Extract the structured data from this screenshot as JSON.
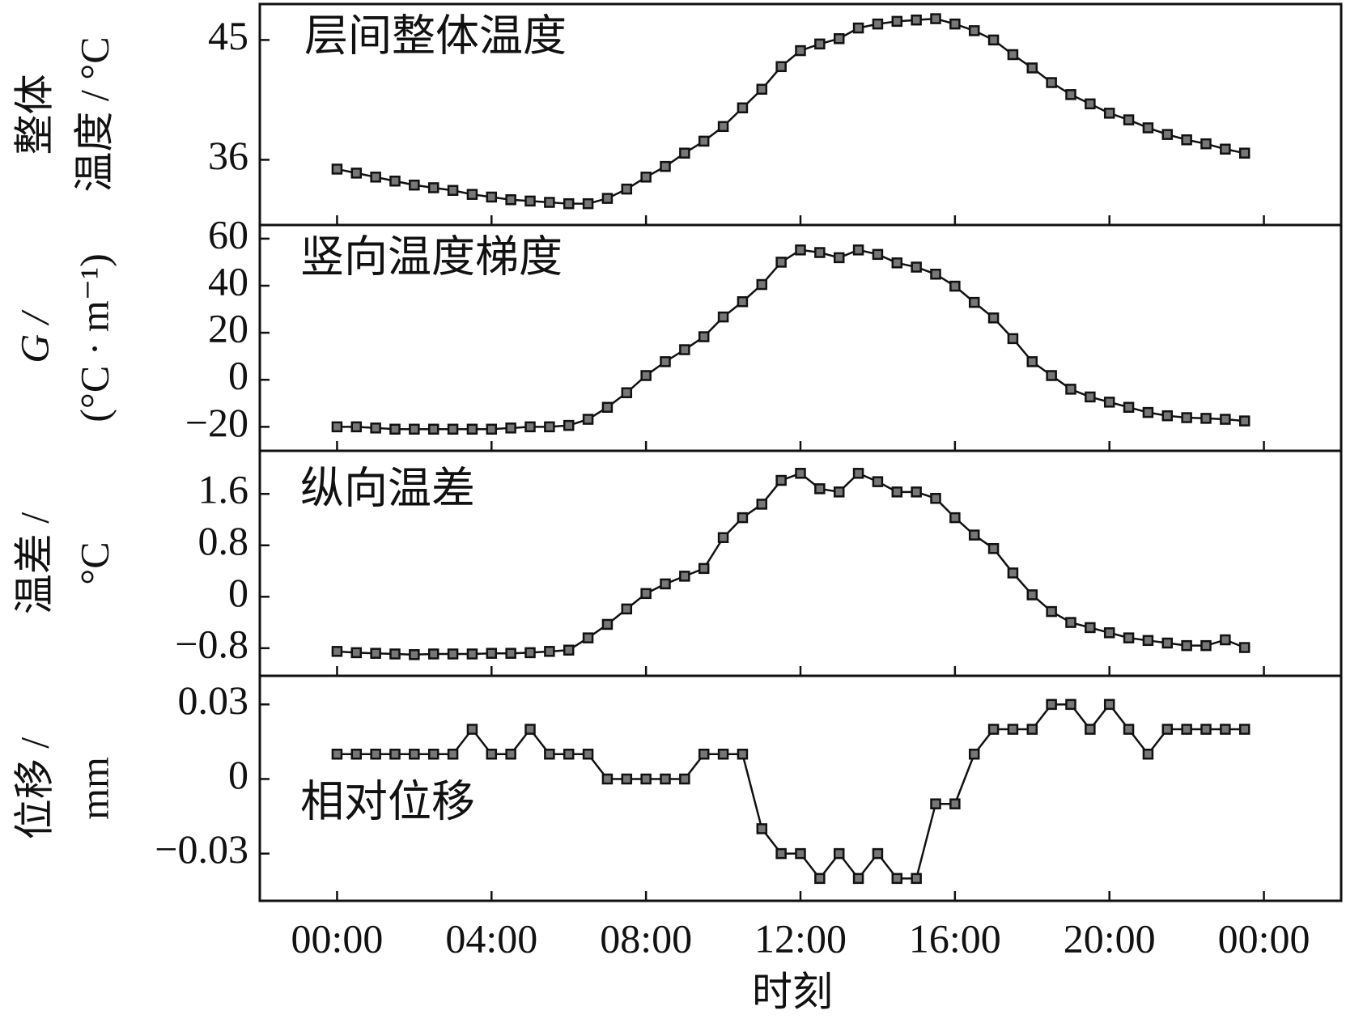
{
  "chart_data": [
    {
      "type": "line",
      "annotation": "层间整体温度",
      "ylabel": [
        "整体",
        "温度 / °C"
      ],
      "x": [
        0,
        0.5,
        1,
        1.5,
        2,
        2.5,
        3,
        3.5,
        4,
        4.5,
        5,
        5.5,
        6,
        6.5,
        7,
        7.5,
        8,
        8.5,
        9,
        9.5,
        10,
        10.5,
        11,
        11.5,
        12,
        12.5,
        13,
        13.5,
        14,
        14.5,
        15,
        15.5,
        16,
        16.5,
        17,
        17.5,
        18,
        18.5,
        19,
        19.5,
        20,
        20.5,
        21,
        21.5,
        22,
        22.5,
        23,
        23.5
      ],
      "values": [
        35.3,
        35.0,
        34.7,
        34.4,
        34.1,
        33.9,
        33.7,
        33.4,
        33.2,
        33.0,
        32.9,
        32.8,
        32.7,
        32.7,
        33.1,
        33.8,
        34.7,
        35.5,
        36.5,
        37.4,
        38.5,
        39.9,
        41.3,
        43.0,
        44.2,
        44.7,
        45.1,
        45.9,
        46.2,
        46.4,
        46.5,
        46.6,
        46.2,
        45.7,
        45.0,
        43.9,
        42.9,
        41.8,
        40.9,
        40.2,
        39.5,
        39.0,
        38.4,
        37.9,
        37.5,
        37.2,
        36.8,
        36.5
      ],
      "color": "#111111",
      "xlim": [
        -2,
        26
      ],
      "ylim": [
        31.1,
        47.7
      ],
      "yticks": [
        36,
        45
      ]
    },
    {
      "type": "line",
      "annotation": "竖向温度梯度",
      "ylabel": [
        "G /",
        "(°C · m⁻¹)"
      ],
      "x": [
        0,
        0.5,
        1,
        1.5,
        2,
        2.5,
        3,
        3.5,
        4,
        4.5,
        5,
        5.5,
        6,
        6.5,
        7,
        7.5,
        8,
        8.5,
        9,
        9.5,
        10,
        10.5,
        11,
        11.5,
        12,
        12.5,
        13,
        13.5,
        14,
        14.5,
        15,
        15.5,
        16,
        16.5,
        17,
        17.5,
        18,
        18.5,
        19,
        19.5,
        20,
        20.5,
        21,
        21.5,
        22,
        22.5,
        23,
        23.5
      ],
      "values": [
        -20,
        -20,
        -20.5,
        -21,
        -21,
        -21,
        -21,
        -21,
        -21,
        -20.5,
        -20,
        -20,
        -19.4,
        -16.8,
        -11.7,
        -5.5,
        1.8,
        7.7,
        12.8,
        18.3,
        26.7,
        33.2,
        40.5,
        50,
        55.2,
        54.1,
        51.9,
        55.2,
        53.3,
        49.7,
        47.9,
        44.9,
        39.8,
        32.9,
        26.3,
        17.5,
        7.7,
        1.8,
        -4,
        -7.3,
        -9.5,
        -11.7,
        -13.9,
        -15.3,
        -16.1,
        -16.4,
        -16.8,
        -17.5
      ],
      "color": "#111111",
      "xlim": [
        -2,
        26
      ],
      "ylim": [
        -30.2,
        65.8
      ],
      "yticks": [
        {
          "value": -20,
          "label": "−20"
        },
        0,
        20,
        40,
        60
      ]
    },
    {
      "type": "line",
      "annotation": "纵向温差",
      "ylabel": [
        "温差 /",
        "°C"
      ],
      "x": [
        0,
        0.5,
        1,
        1.5,
        2,
        2.5,
        3,
        3.5,
        4,
        4.5,
        5,
        5.5,
        6,
        6.5,
        7,
        7.5,
        8,
        8.5,
        9,
        9.5,
        10,
        10.5,
        11,
        11.5,
        12,
        12.5,
        13,
        13.5,
        14,
        14.5,
        15,
        15.5,
        16,
        16.5,
        17,
        17.5,
        18,
        18.5,
        19,
        19.5,
        20,
        20.5,
        21,
        21.5,
        22,
        22.5,
        23,
        23.5
      ],
      "values": [
        -0.85,
        -0.87,
        -0.88,
        -0.89,
        -0.9,
        -0.89,
        -0.89,
        -0.89,
        -0.88,
        -0.88,
        -0.87,
        -0.85,
        -0.83,
        -0.64,
        -0.43,
        -0.19,
        0.05,
        0.2,
        0.32,
        0.44,
        0.92,
        1.23,
        1.44,
        1.81,
        1.92,
        1.68,
        1.63,
        1.92,
        1.79,
        1.63,
        1.63,
        1.53,
        1.23,
        0.96,
        0.75,
        0.37,
        0.03,
        -0.23,
        -0.4,
        -0.48,
        -0.56,
        -0.64,
        -0.68,
        -0.72,
        -0.76,
        -0.76,
        -0.67,
        -0.79
      ],
      "color": "#111111",
      "xlim": [
        -2,
        26
      ],
      "ylim": [
        -1.23,
        2.27
      ],
      "yticks": [
        {
          "value": -0.8,
          "label": "−0.8"
        },
        0,
        0.8,
        1.6
      ]
    },
    {
      "type": "line",
      "annotation": "相对位移",
      "ylabel": [
        "位移 /",
        "mm"
      ],
      "xlabel": "时刻",
      "x": [
        0,
        0.5,
        1,
        1.5,
        2,
        2.5,
        3,
        3.5,
        4,
        4.5,
        5,
        5.5,
        6,
        6.5,
        7,
        7.5,
        8,
        8.5,
        9,
        9.5,
        10,
        10.5,
        11,
        11.5,
        12,
        12.5,
        13,
        13.5,
        14,
        14.5,
        15,
        15.5,
        16,
        16.5,
        17,
        17.5,
        18,
        18.5,
        19,
        19.5,
        20,
        20.5,
        21,
        21.5,
        22,
        22.5,
        23,
        23.5
      ],
      "values": [
        0.01,
        0.01,
        0.01,
        0.01,
        0.01,
        0.01,
        0.01,
        0.02,
        0.01,
        0.01,
        0.02,
        0.01,
        0.01,
        0.01,
        0,
        0,
        0,
        0,
        0,
        0.01,
        0.01,
        0.01,
        -0.02,
        -0.03,
        -0.03,
        -0.04,
        -0.03,
        -0.04,
        -0.03,
        -0.04,
        -0.04,
        -0.01,
        -0.01,
        0.01,
        0.02,
        0.02,
        0.02,
        0.03,
        0.03,
        0.02,
        0.03,
        0.02,
        0.01,
        0.02,
        0.02,
        0.02,
        0.02,
        0.02
      ],
      "color": "#111111",
      "xlim": [
        -2,
        26
      ],
      "ylim": [
        -0.049,
        0.0415
      ],
      "yticks": [
        {
          "value": -0.03,
          "label": "−0.03"
        },
        0,
        0.03
      ],
      "xticks": [
        {
          "value": 0,
          "label": "00:00"
        },
        {
          "value": 4,
          "label": "04:00"
        },
        {
          "value": 8,
          "label": "08:00"
        },
        {
          "value": 12,
          "label": "12:00"
        },
        {
          "value": 16,
          "label": "16:00"
        },
        {
          "value": 20,
          "label": "20:00"
        },
        {
          "value": 24,
          "label": "00:00"
        }
      ]
    }
  ]
}
